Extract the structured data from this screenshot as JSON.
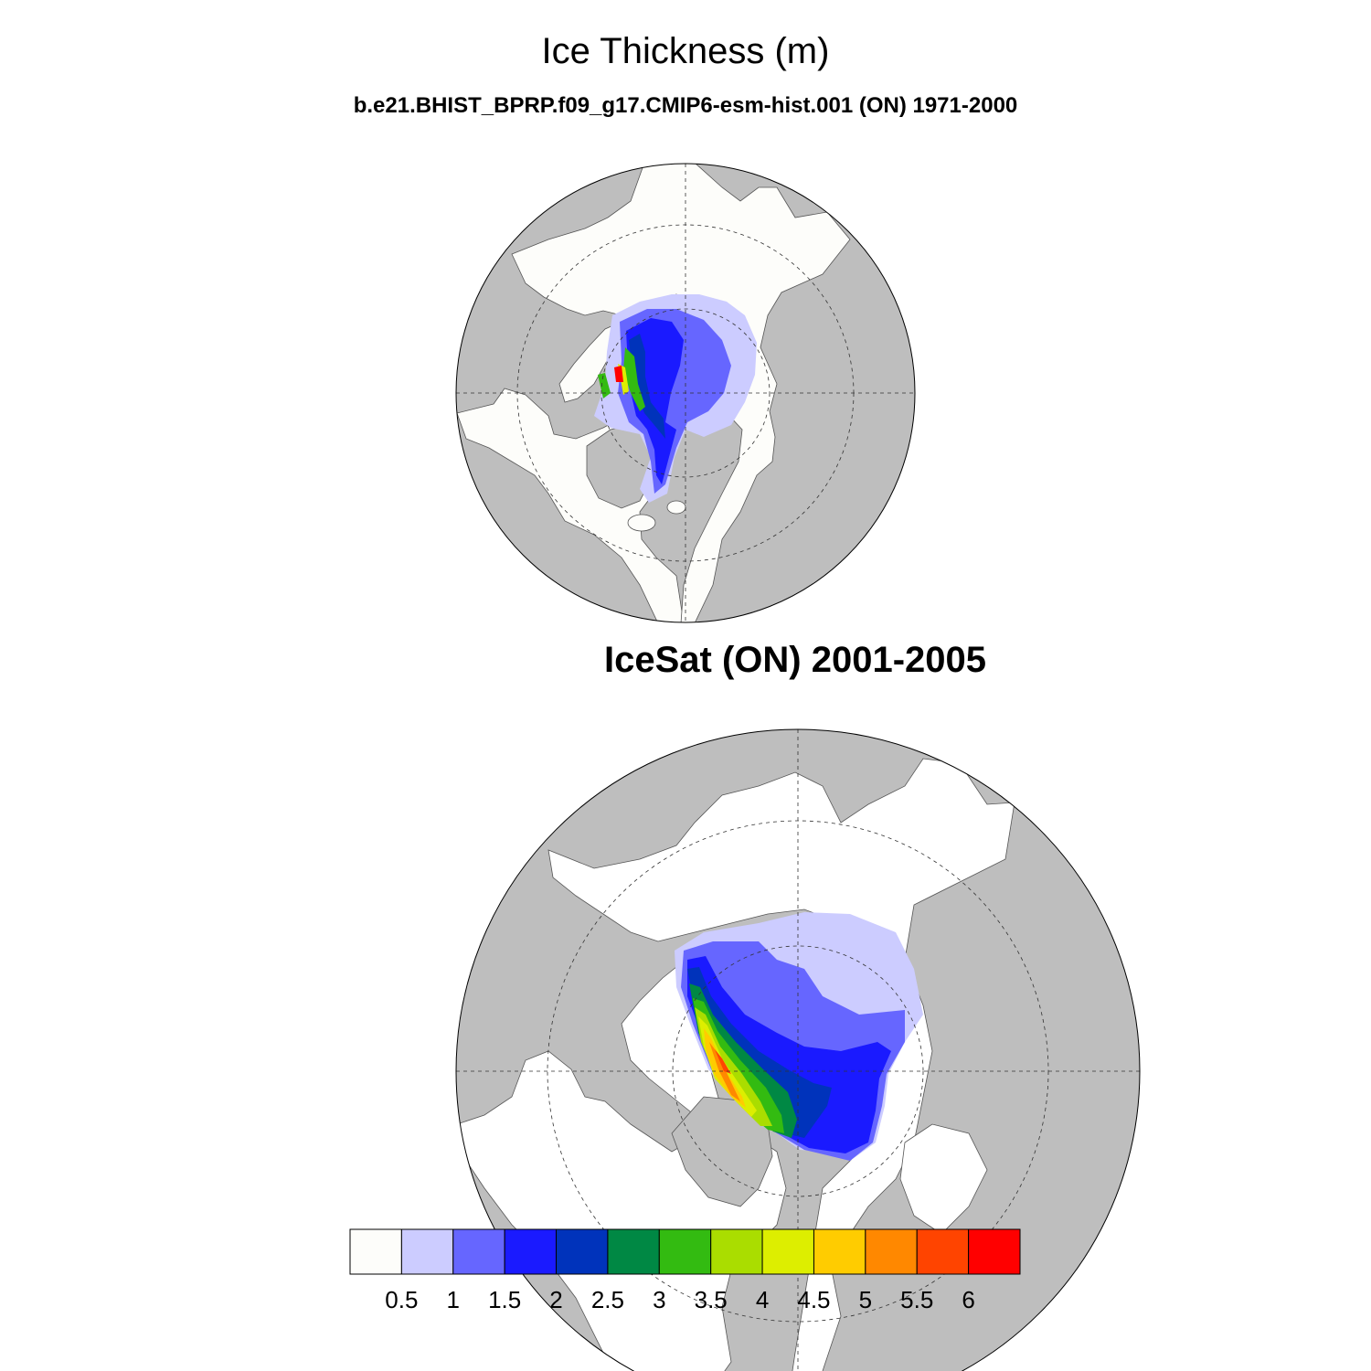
{
  "chart_data": {
    "type": "heatmap",
    "title": "Ice Thickness (m)",
    "panels": [
      {
        "name": "model",
        "subtitle": "b.e21.BHIST_BPRP.f09_g17.CMIP6-esm-hist.001 (ON) 1971-2000",
        "projection": "north-polar-stereographic"
      },
      {
        "name": "observation",
        "subtitle": "IceSat (ON) 2001-2005",
        "projection": "north-polar-stereographic"
      }
    ],
    "colorbar": {
      "levels": [
        "0.5",
        "1",
        "1.5",
        "2",
        "2.5",
        "3",
        "3.5",
        "4",
        "4.5",
        "5",
        "5.5",
        "6"
      ],
      "colors": [
        "#fdfdfa",
        "#ccccff",
        "#6666ff",
        "#1a1aff",
        "#0033bb",
        "#008844",
        "#33bb11",
        "#aadd00",
        "#ddee00",
        "#ffcc00",
        "#ff8800",
        "#ff4400",
        "#ff0000"
      ]
    },
    "style": {
      "ocean": "#bebebe",
      "land": "#fdfdfa"
    }
  }
}
